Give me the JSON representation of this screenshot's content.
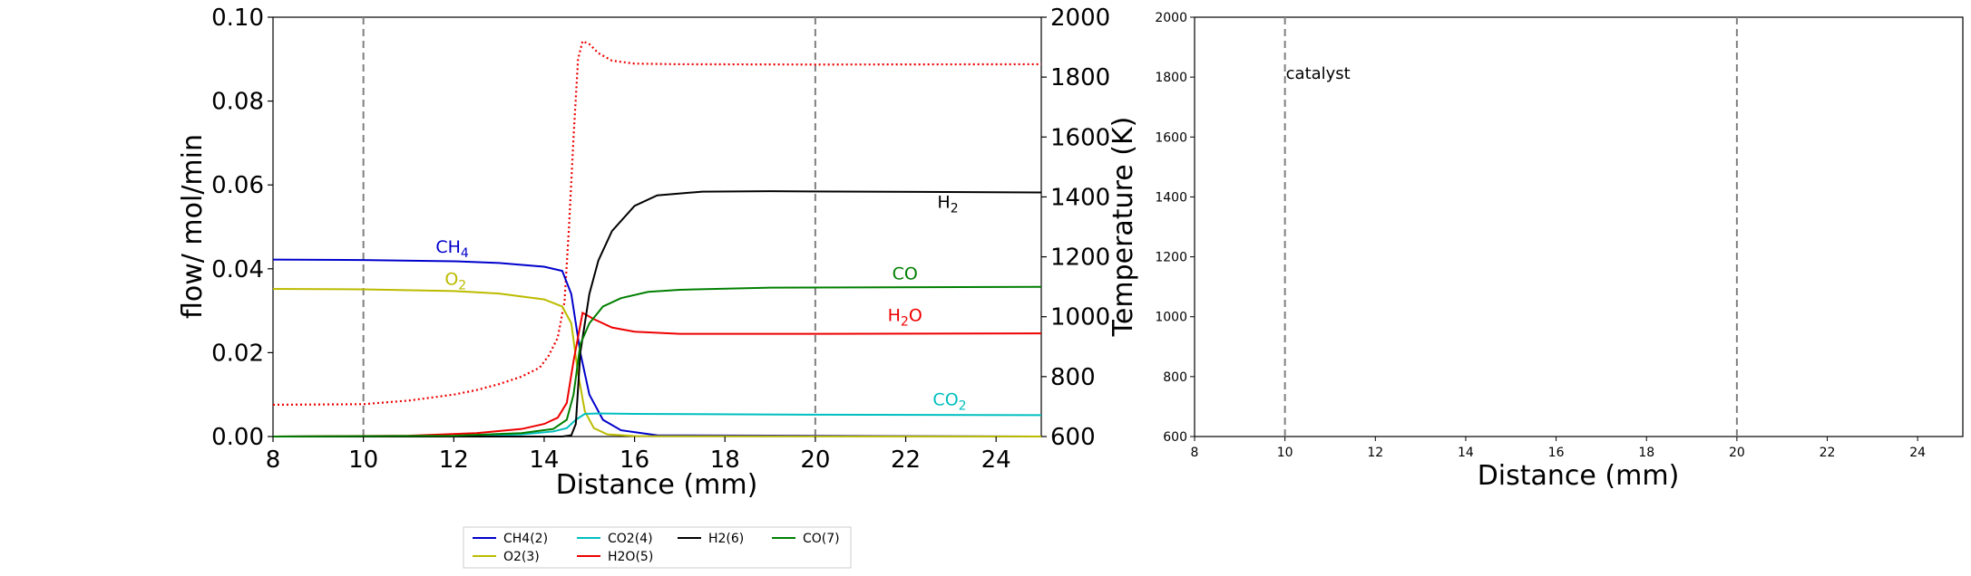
{
  "chart_data": [
    {
      "type": "line",
      "xlabel": "Distance (mm)",
      "ylabel": "flow/ mol/min",
      "ylabel_right": "Temperature (K)",
      "xlim": [
        8,
        25
      ],
      "ylim": [
        0,
        0.1
      ],
      "ylim_right": [
        600,
        2000
      ],
      "xticks": [
        "8",
        "10",
        "12",
        "14",
        "16",
        "18",
        "20",
        "22",
        "24"
      ],
      "yticks": [
        "0.00",
        "0.02",
        "0.04",
        "0.06",
        "0.08",
        "0.10"
      ],
      "yticks_right": [
        "600",
        "800",
        "1000",
        "1200",
        "1400",
        "1600",
        "1800",
        "2000"
      ],
      "vlines": [
        10,
        20
      ],
      "series": [
        {
          "name": "CH4(2)",
          "label": "CH",
          "sub": "4",
          "color": "#0000cc",
          "x": [
            8,
            10,
            12,
            13,
            14,
            14.4,
            14.6,
            14.8,
            15,
            15.3,
            15.7,
            16.5,
            25
          ],
          "y": [
            0.0422,
            0.0421,
            0.0418,
            0.0414,
            0.0405,
            0.0395,
            0.034,
            0.02,
            0.01,
            0.004,
            0.0015,
            0.0003,
            0.0
          ]
        },
        {
          "name": "O2(3)",
          "label": "O",
          "sub": "2",
          "color": "#bbbb00",
          "x": [
            8,
            10,
            12,
            13,
            14,
            14.4,
            14.6,
            14.75,
            14.9,
            15.1,
            15.4,
            16,
            25
          ],
          "y": [
            0.0352,
            0.0351,
            0.0347,
            0.0341,
            0.0327,
            0.031,
            0.027,
            0.015,
            0.006,
            0.002,
            0.0005,
            0.0001,
            0.0
          ]
        },
        {
          "name": "CO2(4)",
          "label": "CO",
          "sub": "2",
          "color": "#00bfbf",
          "x": [
            8,
            12,
            13.5,
            14.2,
            14.5,
            14.7,
            14.9,
            15.2,
            16,
            20,
            25
          ],
          "y": [
            0.0,
            0.0001,
            0.0005,
            0.0012,
            0.002,
            0.004,
            0.0054,
            0.0055,
            0.0054,
            0.0052,
            0.0051
          ]
        },
        {
          "name": "H2O(5)",
          "label": "H",
          "sub": "2",
          "suffix": "O",
          "color": "#ee0000",
          "x": [
            8,
            11,
            12.5,
            13.5,
            14,
            14.3,
            14.5,
            14.65,
            14.85,
            15.1,
            15.5,
            16,
            17,
            20,
            25
          ],
          "y": [
            0.0,
            0.0002,
            0.0008,
            0.0018,
            0.003,
            0.0045,
            0.008,
            0.018,
            0.0295,
            0.028,
            0.026,
            0.025,
            0.0245,
            0.0245,
            0.0246
          ]
        },
        {
          "name": "H2(6)",
          "label": "H",
          "sub": "2",
          "color": "#000000",
          "x": [
            8,
            14.4,
            14.6,
            14.7,
            14.8,
            15,
            15.2,
            15.5,
            16,
            16.5,
            17.5,
            19,
            25
          ],
          "y": [
            0.0,
            0.0,
            0.0003,
            0.003,
            0.02,
            0.034,
            0.042,
            0.049,
            0.055,
            0.0575,
            0.0584,
            0.0585,
            0.0582
          ]
        },
        {
          "name": "CO(7)",
          "label": "CO",
          "color": "#007f00",
          "x": [
            8,
            12,
            13.5,
            14.2,
            14.5,
            14.65,
            14.8,
            15,
            15.3,
            15.7,
            16.3,
            17,
            19,
            25
          ],
          "y": [
            0.0,
            0.0002,
            0.0008,
            0.0018,
            0.004,
            0.01,
            0.022,
            0.027,
            0.031,
            0.033,
            0.0345,
            0.035,
            0.0355,
            0.0357
          ]
        }
      ],
      "temperature": {
        "color": "#ee0000",
        "style": "dotted",
        "x": [
          8,
          10,
          11,
          12,
          12.5,
          13,
          13.5,
          13.9,
          14.1,
          14.3,
          14.45,
          14.55,
          14.65,
          14.75,
          14.85,
          15,
          15.2,
          15.5,
          16,
          17,
          20,
          25
        ],
        "y": [
          706,
          708,
          720,
          740,
          755,
          775,
          800,
          830,
          870,
          930,
          1050,
          1300,
          1600,
          1860,
          1920,
          1910,
          1880,
          1855,
          1845,
          1843,
          1842,
          1843
        ]
      },
      "annotations": [
        {
          "series": "H2(6)",
          "x": 22.7,
          "y": 0.0545
        },
        {
          "series": "CH4(2)",
          "x": 11.6,
          "y": 0.0438
        },
        {
          "series": "O2(3)",
          "x": 11.8,
          "y": 0.0362
        },
        {
          "series": "CO(7)",
          "x": 21.7,
          "y": 0.0375
        },
        {
          "series": "H2O(5)",
          "x": 21.6,
          "y": 0.0275
        },
        {
          "series": "CO2(4)",
          "x": 22.6,
          "y": 0.0075
        }
      ],
      "legend": {
        "placement": "below",
        "entries": [
          "CH4(2)",
          "O2(3)",
          "CO2(4)",
          "H2O(5)",
          "H2(6)",
          "CO(7)"
        ]
      }
    },
    {
      "type": "line",
      "xlabel": "Distance (mm)",
      "ylabel": "",
      "xlim": [
        8,
        25
      ],
      "ylim": [
        600,
        2000
      ],
      "xticks": [
        "8",
        "10",
        "12",
        "14",
        "16",
        "18",
        "20",
        "22",
        "24"
      ],
      "yticks": [
        "600",
        "800",
        "1000",
        "1200",
        "1400",
        "1600",
        "1800",
        "2000"
      ],
      "vlines": [
        10,
        20
      ],
      "annotation": {
        "text": "catalyst",
        "x": 10,
        "y": 1800
      },
      "series": []
    }
  ]
}
